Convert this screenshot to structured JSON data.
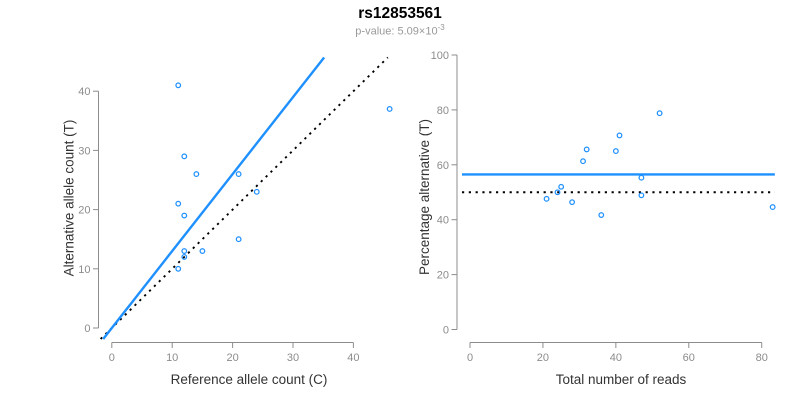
{
  "title": "rs12853561",
  "subtitle": {
    "text": "p-value: 5.09×10",
    "exponent": "-3"
  },
  "colors": {
    "accent_blue": "#1E90FF",
    "reference_black": "#000000",
    "axis_gray": "#8c8c8c",
    "subtitle_gray": "#999999",
    "label_black": "#333333"
  },
  "chart_data": [
    {
      "type": "scatter",
      "name": "allele-counts-scatter",
      "xlabel": "Reference allele count (C)",
      "ylabel": "Alternative allele count (T)",
      "xticks": [
        0,
        10,
        20,
        30,
        40
      ],
      "yticks": [
        0,
        10,
        20,
        30,
        40
      ],
      "xlim": [
        -1.85,
        47.6
      ],
      "ylim": [
        -1.85,
        45.7
      ],
      "grid": false,
      "points": [
        [
          11,
          41
        ],
        [
          46,
          37
        ],
        [
          12,
          29
        ],
        [
          14,
          26
        ],
        [
          21,
          26
        ],
        [
          24,
          23
        ],
        [
          11,
          21
        ],
        [
          12,
          19
        ],
        [
          21,
          15
        ],
        [
          15,
          13
        ],
        [
          12,
          13
        ],
        [
          12,
          12
        ],
        [
          11,
          10
        ]
      ],
      "fit_line": {
        "slope": 1.3,
        "intercept": 0,
        "style": "solid",
        "color_key": "accent_blue"
      },
      "reference_line": {
        "slope": 1,
        "intercept": 0,
        "style": "dotted",
        "color_key": "reference_black"
      }
    },
    {
      "type": "scatter",
      "name": "percentage-vs-reads-scatter",
      "xlabel": "Total number of reads",
      "ylabel": "Percentage alternative (T)",
      "xticks": [
        0,
        20,
        40,
        60,
        80
      ],
      "yticks": [
        0,
        20,
        40,
        60,
        80,
        100
      ],
      "xlim": [
        -2.2,
        83.6
      ],
      "ylim": [
        0,
        100
      ],
      "grid": false,
      "points": [
        [
          52,
          78.8
        ],
        [
          41,
          70.7
        ],
        [
          32,
          65.6
        ],
        [
          40,
          65
        ],
        [
          31,
          61.3
        ],
        [
          47,
          55.3
        ],
        [
          25,
          52
        ],
        [
          24,
          50
        ],
        [
          21,
          47.6
        ],
        [
          47,
          48.9
        ],
        [
          28,
          46.4
        ],
        [
          36,
          41.7
        ],
        [
          83,
          44.6
        ]
      ],
      "fit_line": {
        "slope": 0,
        "intercept": 56.5,
        "style": "solid",
        "color_key": "accent_blue"
      },
      "reference_line": {
        "slope": 0,
        "intercept": 50,
        "style": "dotted",
        "color_key": "reference_black"
      }
    }
  ]
}
